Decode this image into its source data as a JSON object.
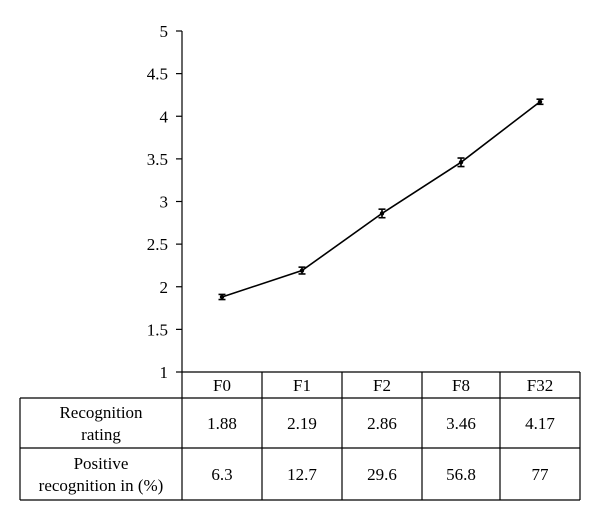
{
  "chart_data": {
    "type": "line",
    "categories": [
      "F0",
      "F1",
      "F2",
      "F8",
      "F32"
    ],
    "series": [
      {
        "values": [
          1.88,
          2.19,
          2.86,
          3.46,
          4.17
        ],
        "error": [
          0.03,
          0.04,
          0.05,
          0.05,
          0.03
        ]
      }
    ],
    "ylim": [
      1,
      5
    ],
    "yticks": [
      "1",
      "1.5",
      "2",
      "2.5",
      "3",
      "3.5",
      "4",
      "4.5",
      "5"
    ],
    "grid": false,
    "table": {
      "header": [
        "F0",
        "F1",
        "F2",
        "F8",
        "F32"
      ],
      "rows": [
        {
          "label_lines": [
            "Recognition",
            "rating"
          ],
          "values": [
            "1.88",
            "2.19",
            "2.86",
            "3.46",
            "4.17"
          ]
        },
        {
          "label_lines": [
            "Positive",
            "recognition in (%)"
          ],
          "values": [
            "6.3",
            "12.7",
            "29.6",
            "56.8",
            "77"
          ]
        }
      ]
    }
  }
}
